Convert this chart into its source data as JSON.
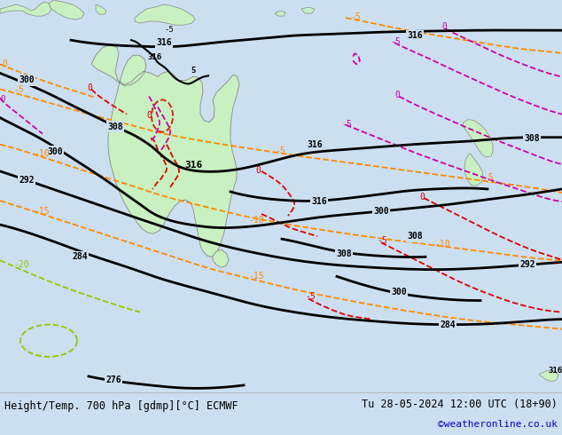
{
  "title_left": "Height/Temp. 700 hPa [gdmp][°C] ECMWF",
  "title_right": "Tu 28-05-2024 12:00 UTC (18+90)",
  "watermark": "©weatheronline.co.uk",
  "bg_color": "#ccdff0",
  "land_color": "#c8f0c0",
  "land_edge": "#888888",
  "caption_bg": "#ffffff",
  "watermark_color": "#0000cc",
  "black": "#000000",
  "red": "#dd0000",
  "orange": "#ff8800",
  "pink": "#cc00aa",
  "green_cold": "#88cc00",
  "fig_width": 6.34,
  "fig_height": 4.9,
  "dpi": 100
}
